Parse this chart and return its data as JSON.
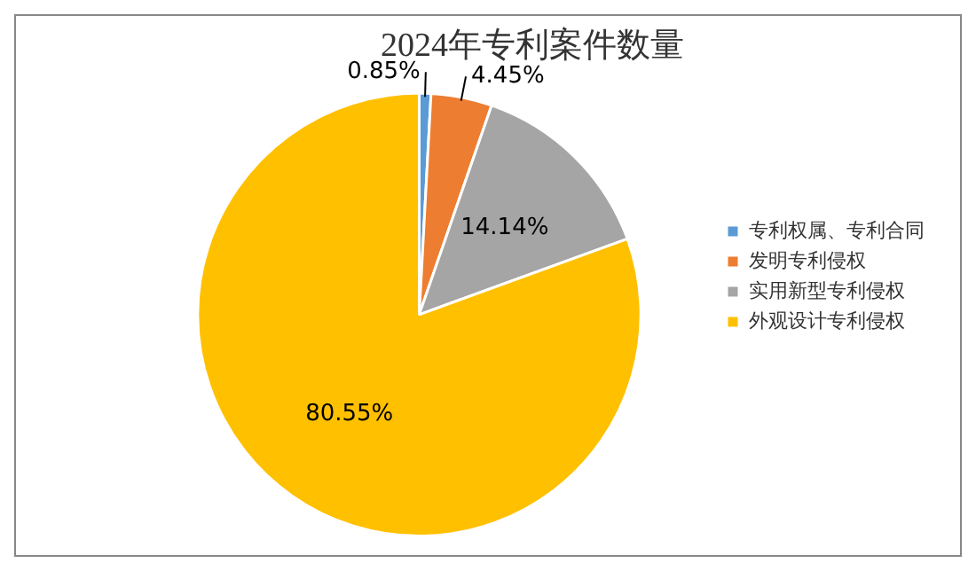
{
  "chart_data": {
    "type": "pie",
    "title": "2024年专利案件数量",
    "categories": [
      "专利权属、专利合同",
      "发明专利侵权",
      "实用新型专利侵权",
      "外观设计专利侵权"
    ],
    "values": [
      0.85,
      4.45,
      14.14,
      80.55
    ],
    "colors": [
      "#5b9bd5",
      "#ed7d31",
      "#a5a5a5",
      "#ffc000"
    ],
    "value_labels": [
      "0.85%",
      "4.45%",
      "14.14%",
      "80.55%"
    ],
    "legend": "right"
  }
}
